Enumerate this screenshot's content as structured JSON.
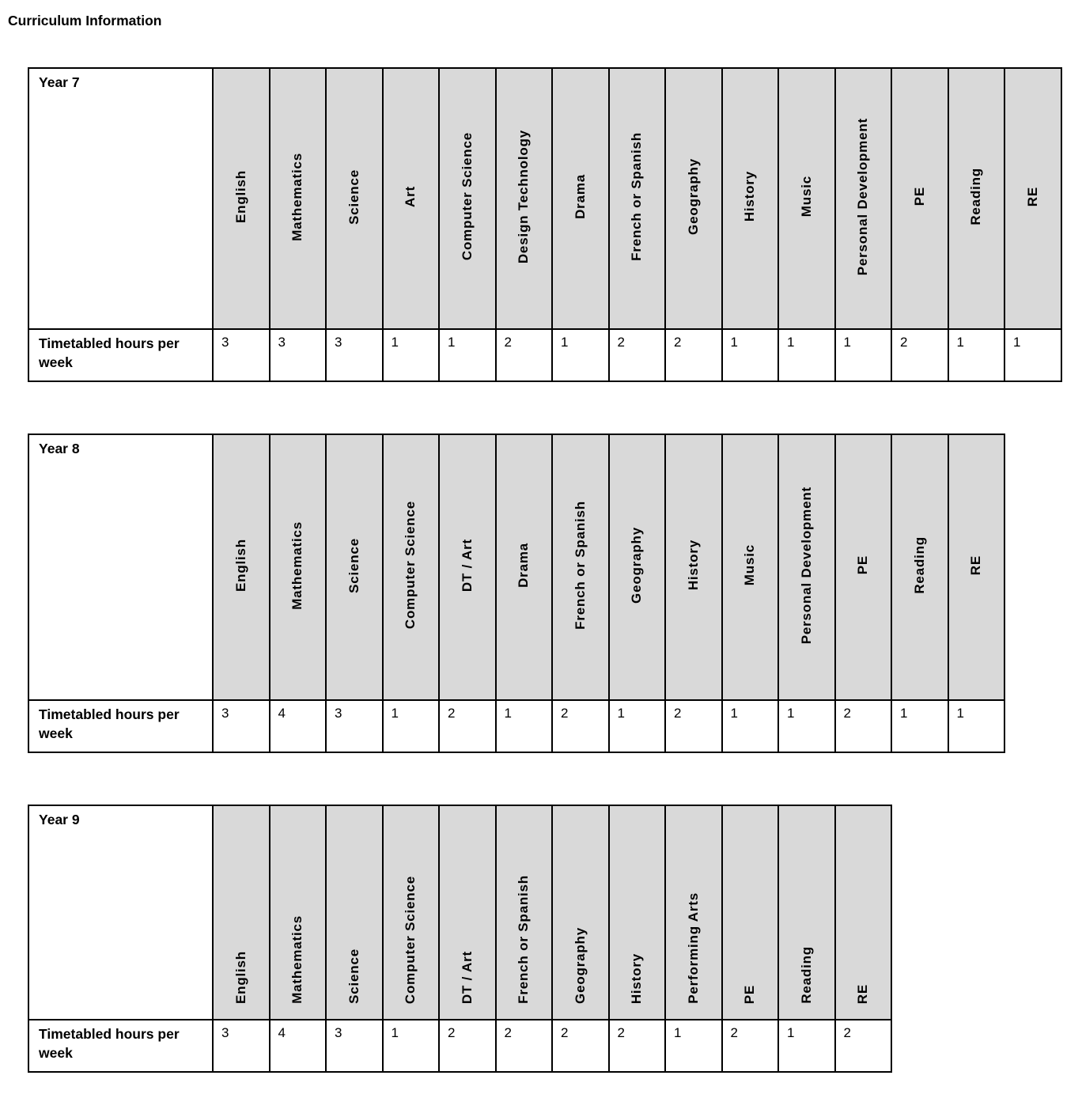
{
  "page": {
    "title": "Curriculum Information"
  },
  "hours_row_label": "Timetabled hours per week",
  "tables": [
    {
      "year_label": "Year 7",
      "columns": [
        "English",
        "Mathematics",
        "Science",
        "Art",
        "Computer Science",
        "Design Technology",
        "Drama",
        "French or Spanish",
        "Geography",
        "History",
        "Music",
        "Personal Development",
        "PE",
        "Reading",
        "RE"
      ],
      "hours_per_week": [
        3,
        3,
        3,
        1,
        1,
        2,
        1,
        2,
        2,
        1,
        1,
        1,
        2,
        1,
        1
      ]
    },
    {
      "year_label": "Year 8",
      "columns": [
        "English",
        "Mathematics",
        "Science",
        "Computer Science",
        "DT / Art",
        "Drama",
        "French or Spanish",
        "Geography",
        "History",
        "Music",
        "Personal Development",
        "PE",
        "Reading",
        "RE"
      ],
      "hours_per_week": [
        3,
        4,
        3,
        1,
        2,
        1,
        2,
        1,
        2,
        1,
        1,
        2,
        1,
        1
      ]
    },
    {
      "year_label": "Year 9",
      "columns": [
        "English",
        "Mathematics",
        "Science",
        "Computer Science",
        "DT / Art",
        "French or Spanish",
        "Geography",
        "History",
        "Performing Arts",
        "PE",
        "Reading",
        "RE"
      ],
      "hours_per_week": [
        3,
        4,
        3,
        1,
        2,
        2,
        2,
        2,
        1,
        2,
        1,
        2
      ]
    }
  ],
  "colors": {
    "header_fill": "#d9d9d9",
    "border": "#000000",
    "text": "#000000"
  }
}
